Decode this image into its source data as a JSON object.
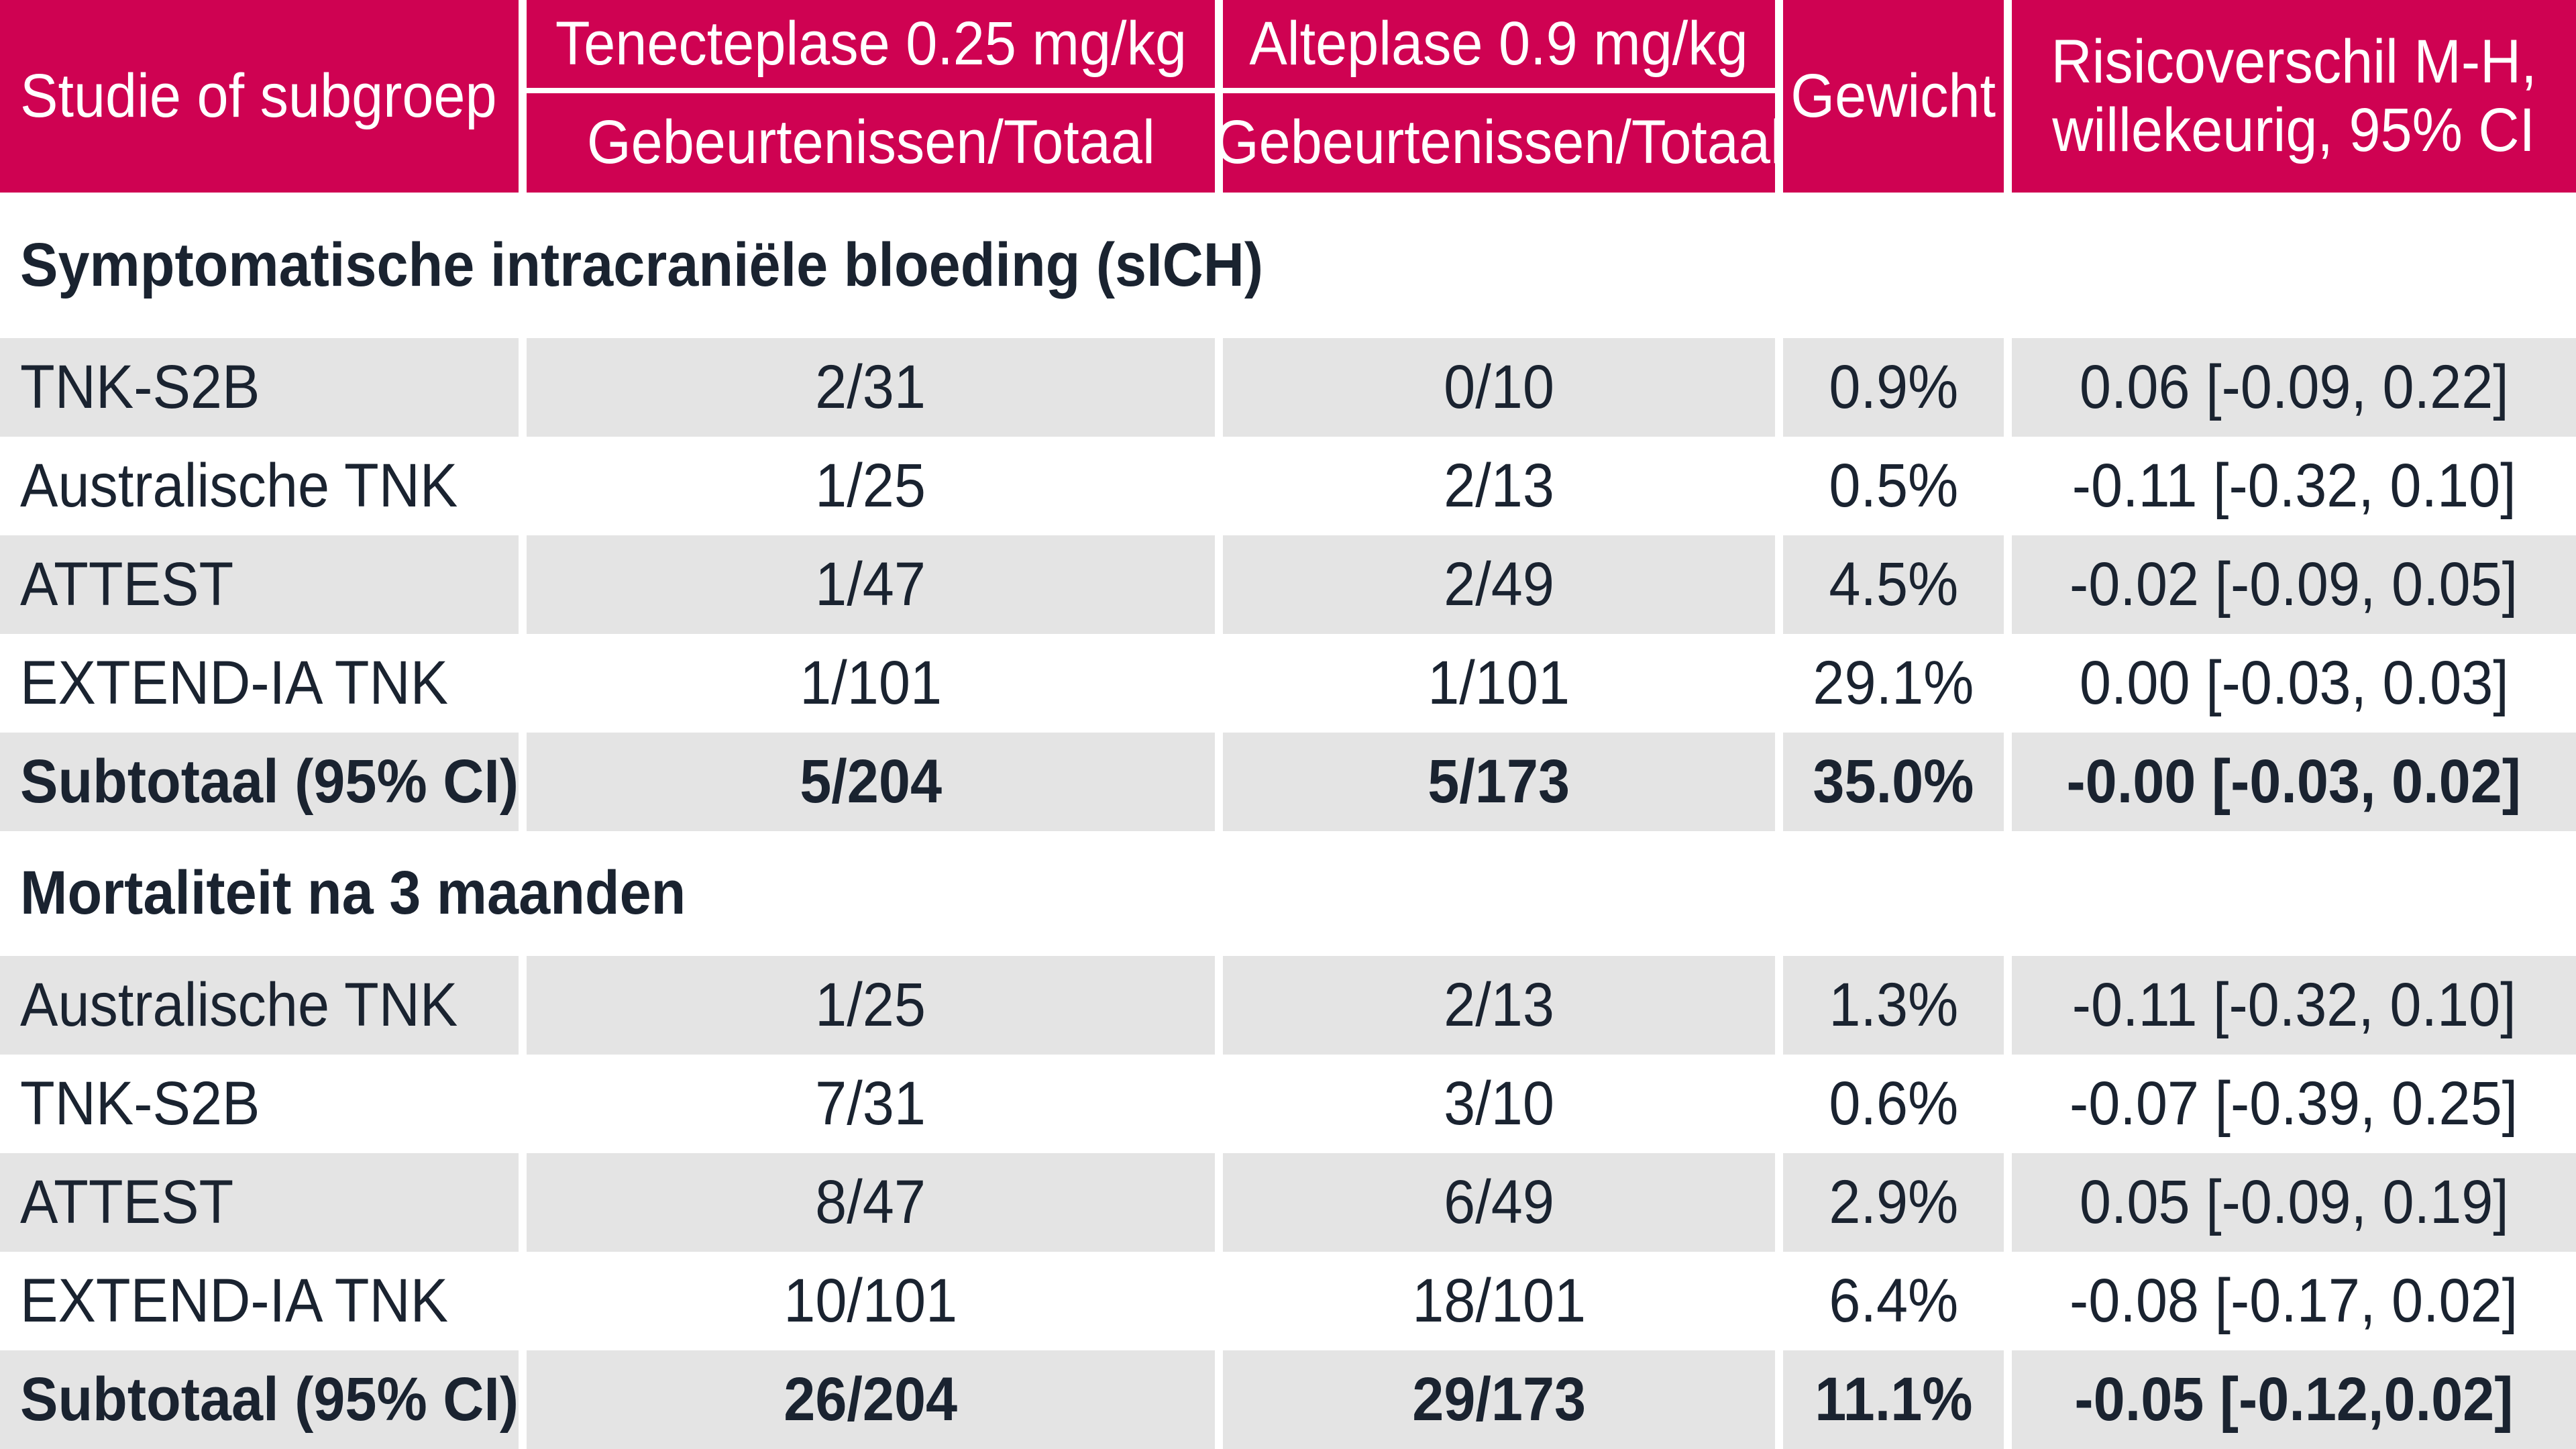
{
  "colors": {
    "header_bg": "#cf0252",
    "header_text": "#ffffff",
    "row_alt_bg": "#e4e4e4",
    "text": "#1a2330",
    "background": "#ffffff"
  },
  "chart_data": {
    "type": "table",
    "columns": [
      "Studie of subgroep",
      "Tenecteplase 0.25 mg/kg — Gebeurtenissen/Totaal",
      "Alteplase 0.9 mg/kg — Gebeurtenissen/Totaal",
      "Gewicht",
      "Risicoverschil M-H, willekeurig, 95% CI"
    ],
    "header": {
      "study": "Studie of subgroep",
      "tenecteplase": "Tenecteplase 0.25 mg/kg",
      "alteplase": "Alteplase 0.9 mg/kg",
      "events_total": "Gebeurtenissen/Totaal",
      "weight": "Gewicht",
      "risk_line1": "Risicoverschil M-H,",
      "risk_line2": "willekeurig, 95% CI"
    },
    "sections": [
      {
        "title": "Symptomatische intracraniële bloeding (sICH)",
        "rows": [
          {
            "study": "TNK-S2B",
            "tenecteplase": "2/31",
            "alteplase": "0/10",
            "weight": "0.9%",
            "risk_diff": "0.06 [-0.09, 0.22]",
            "subtotal": false
          },
          {
            "study": "Australische TNK",
            "tenecteplase": "1/25",
            "alteplase": "2/13",
            "weight": "0.5%",
            "risk_diff": "-0.11 [-0.32, 0.10]",
            "subtotal": false
          },
          {
            "study": "ATTEST",
            "tenecteplase": "1/47",
            "alteplase": "2/49",
            "weight": "4.5%",
            "risk_diff": "-0.02 [-0.09, 0.05]",
            "subtotal": false
          },
          {
            "study": "EXTEND-IA TNK",
            "tenecteplase": "1/101",
            "alteplase": "1/101",
            "weight": "29.1%",
            "risk_diff": "0.00 [-0.03, 0.03]",
            "subtotal": false
          },
          {
            "study": "Subtotaal (95% CI)",
            "tenecteplase": "5/204",
            "alteplase": "5/173",
            "weight": "35.0%",
            "risk_diff": "-0.00 [-0.03, 0.02]",
            "subtotal": true
          }
        ]
      },
      {
        "title": "Mortaliteit na 3 maanden",
        "rows": [
          {
            "study": "Australische TNK",
            "tenecteplase": "1/25",
            "alteplase": "2/13",
            "weight": "1.3%",
            "risk_diff": "-0.11 [-0.32, 0.10]",
            "subtotal": false
          },
          {
            "study": "TNK-S2B",
            "tenecteplase": "7/31",
            "alteplase": "3/10",
            "weight": "0.6%",
            "risk_diff": "-0.07 [-0.39, 0.25]",
            "subtotal": false
          },
          {
            "study": "ATTEST",
            "tenecteplase": "8/47",
            "alteplase": "6/49",
            "weight": "2.9%",
            "risk_diff": "0.05 [-0.09, 0.19]",
            "subtotal": false
          },
          {
            "study": "EXTEND-IA TNK",
            "tenecteplase": "10/101",
            "alteplase": "18/101",
            "weight": "6.4%",
            "risk_diff": "-0.08 [-0.17, 0.02]",
            "subtotal": false
          },
          {
            "study": "Subtotaal (95% CI)",
            "tenecteplase": "26/204",
            "alteplase": "29/173",
            "weight": "11.1%",
            "risk_diff": "-0.05 [-0.12,0.02]",
            "subtotal": true
          }
        ]
      }
    ]
  }
}
